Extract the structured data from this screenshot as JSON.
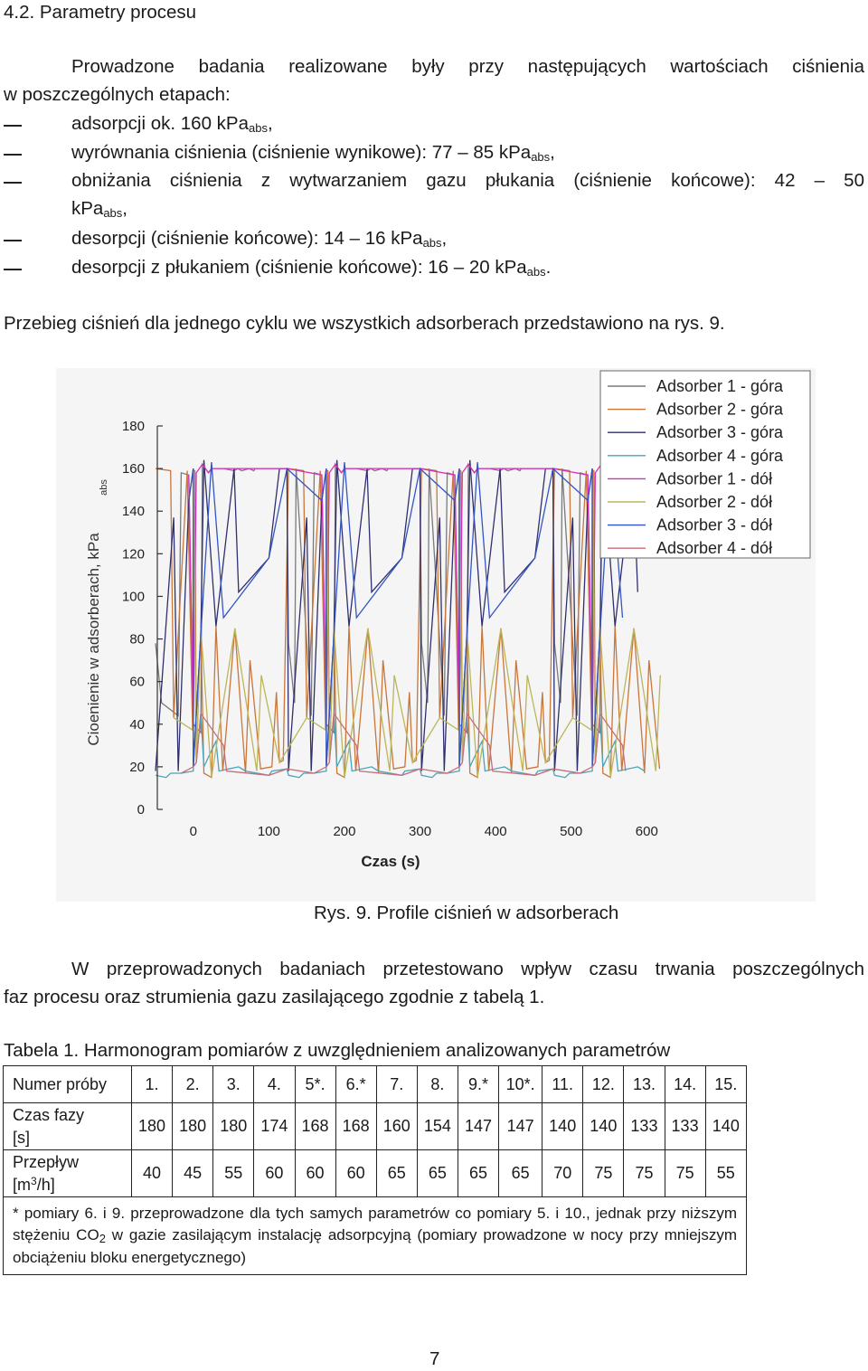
{
  "section": {
    "heading": "4.2. Parametry procesu"
  },
  "intro": {
    "line1": "Prowadzone badania realizowane były przy następujących wartościach ciśnienia",
    "line2": "w poszczególnych etapach:"
  },
  "bullets": [
    {
      "text": "adsorpcji ok. 160 kPa",
      "sub": "abs",
      "after": ","
    },
    {
      "text": "wyrównania ciśnienia (ciśnienie wynikowe): 77 – 85 kPa",
      "sub": "abs",
      "after": ","
    },
    {
      "line_a": "obniżania ciśnienia z wytwarzaniem gazu płukania (ciśnienie końcowe): 42 – 50",
      "line_b": "kPa",
      "sub": "abs",
      "after": ","
    },
    {
      "text": "desorpcji (ciśnienie końcowe): 14 – 16 kPa",
      "sub": "abs",
      "after": ","
    },
    {
      "text": "desorpcji z płukaniem (ciśnienie końcowe): 16 – 20 kPa",
      "sub": "abs",
      "after": "."
    }
  ],
  "ref_text": "Przebieg ciśnień dla jednego cyklu we wszystkich adsorberach przedstawiono na rys. 9.",
  "chart_data": {
    "type": "line",
    "title": "",
    "xlabel": "Czas (s)",
    "ylabel": "Cioenienie w adsorberach, kPa",
    "ylabel_sub": "abs",
    "xlim": [
      -50,
      620
    ],
    "ylim": [
      0,
      180
    ],
    "x_ticks": [
      0,
      100,
      200,
      300,
      400,
      500,
      600
    ],
    "y_ticks": [
      0,
      20,
      40,
      60,
      80,
      100,
      120,
      140,
      160,
      180
    ],
    "legend_position": "top-right",
    "series": [
      {
        "name": "Adsorber 1 - góra",
        "color": "#7a7a7a",
        "points": [
          [
            -50,
            78
          ],
          [
            -42,
            50
          ],
          [
            -20,
            44
          ],
          [
            0,
            40
          ],
          [
            10,
            36
          ],
          [
            12,
            162
          ],
          [
            20,
            158
          ],
          [
            40,
            160
          ],
          [
            80,
            159
          ],
          [
            160,
            158
          ],
          [
            170,
            157
          ],
          [
            200,
            160
          ],
          [
            230,
            159
          ],
          [
            235,
            160
          ],
          [
            240,
            159
          ],
          [
            250,
            160
          ],
          [
            258,
            160
          ],
          [
            275,
            160
          ],
          [
            290,
            160
          ],
          [
            300,
            160
          ],
          [
            312,
            160
          ]
        ]
      },
      {
        "name": "Adsorber 2 - góra",
        "color": "#c8763a",
        "points": [
          [
            -50,
            160
          ],
          [
            -30,
            159
          ],
          [
            -8,
            159
          ],
          [
            0,
            159
          ],
          [
            2,
            159
          ],
          [
            10,
            85
          ],
          [
            30,
            86
          ],
          [
            55,
            85
          ],
          [
            75,
            70
          ],
          [
            110,
            55
          ],
          [
            150,
            43
          ],
          [
            175,
            37
          ],
          [
            180,
            22
          ],
          [
            190,
            17
          ],
          [
            200,
            15
          ],
          [
            215,
            18
          ],
          [
            245,
            17
          ],
          [
            265,
            19
          ],
          [
            280,
            20
          ],
          [
            290,
            22
          ],
          [
            295,
            23
          ]
        ]
      },
      {
        "name": "Adsorber 3 - góra",
        "color": "#2f2f6e",
        "points": [
          [
            -50,
            18
          ],
          [
            -20,
            18
          ],
          [
            0,
            20
          ],
          [
            10,
            82
          ],
          [
            30,
            86
          ],
          [
            60,
            102
          ],
          [
            100,
            118
          ],
          [
            150,
            137
          ],
          [
            170,
            145
          ],
          [
            176,
            160
          ],
          [
            190,
            164
          ],
          [
            230,
            160
          ],
          [
            290,
            160
          ],
          [
            300,
            160
          ]
        ]
      },
      {
        "name": "Adsorber 4 - góra",
        "color": "#4aa3b8",
        "points": [
          [
            -50,
            16
          ],
          [
            -30,
            17
          ],
          [
            0,
            20
          ],
          [
            10,
            45
          ],
          [
            30,
            32
          ],
          [
            60,
            20
          ],
          [
            100,
            16
          ],
          [
            140,
            15
          ],
          [
            160,
            17
          ],
          [
            176,
            18
          ],
          [
            180,
            22
          ],
          [
            190,
            20
          ],
          [
            210,
            18
          ],
          [
            245,
            18
          ],
          [
            280,
            18
          ],
          [
            300,
            19
          ]
        ]
      },
      {
        "name": "Adsorber 1 - dół",
        "color": "#d42fbf",
        "points": [
          [
            0,
            40
          ],
          [
            12,
            162
          ],
          [
            20,
            158
          ],
          [
            60,
            160
          ],
          [
            170,
            157
          ],
          [
            180,
            158
          ],
          [
            200,
            160
          ],
          [
            240,
            160
          ],
          [
            290,
            160
          ],
          [
            300,
            160
          ]
        ]
      },
      {
        "name": "Adsorber 2 - dół",
        "color": "#bcb65a",
        "points": [
          [
            0,
            159
          ],
          [
            10,
            85
          ],
          [
            55,
            85
          ],
          [
            90,
            63
          ],
          [
            150,
            43
          ],
          [
            176,
            37
          ],
          [
            180,
            22
          ],
          [
            200,
            15
          ],
          [
            260,
            18
          ],
          [
            290,
            22
          ]
        ]
      },
      {
        "name": "Adsorber 3 - dół",
        "color": "#3355c4",
        "points": [
          [
            0,
            20
          ],
          [
            10,
            82
          ],
          [
            40,
            90
          ],
          [
            100,
            118
          ],
          [
            170,
            145
          ],
          [
            176,
            160
          ],
          [
            200,
            163
          ],
          [
            300,
            160
          ]
        ]
      },
      {
        "name": "Adsorber 4 - dół",
        "color": "#c86d7a",
        "points": [
          [
            0,
            20
          ],
          [
            10,
            45
          ],
          [
            40,
            30
          ],
          [
            100,
            16
          ],
          [
            160,
            17
          ],
          [
            180,
            22
          ],
          [
            220,
            18
          ],
          [
            300,
            19
          ]
        ]
      }
    ]
  },
  "figure_caption": "Rys. 9. Profile ciśnień w adsorberach",
  "para2": {
    "line1": "W przeprowadzonych badaniach przetestowano wpływ czasu trwania poszczególnych",
    "line2": "faz procesu oraz strumienia gazu zasilającego zgodnie z tabelą 1."
  },
  "table": {
    "caption": "Tabela 1. Harmonogram pomiarów z uwzględnieniem analizowanych parametrów",
    "rows": [
      {
        "label": "Numer próby",
        "values": [
          "1.",
          "2.",
          "3.",
          "4.",
          "5*.",
          "6.*",
          "7.",
          "8.",
          "9.*",
          "10*.",
          "11.",
          "12.",
          "13.",
          "14.",
          "15."
        ]
      },
      {
        "label_a": "Czas fazy",
        "label_b": "[s]",
        "values": [
          "180",
          "180",
          "180",
          "174",
          "168",
          "168",
          "160",
          "154",
          "147",
          "147",
          "140",
          "140",
          "133",
          "133",
          "140"
        ]
      },
      {
        "label_a": "Przepływ",
        "label_b_pre": "[m",
        "label_b_sup": "3",
        "label_b_post": "/h]",
        "values": [
          "40",
          "45",
          "55",
          "60",
          "60",
          "60",
          "65",
          "65",
          "65",
          "65",
          "70",
          "75",
          "75",
          "75",
          "55"
        ]
      }
    ],
    "note_pre": "* pomiary 6. i 9. przeprowadzone dla tych samych parametrów co pomiary 5. i 10., jednak przy niższym stężeniu CO",
    "note_sub": "2",
    "note_post": " w gazie zasilającym instalację adsorpcyjną (pomiary prowadzone w nocy przy mniejszym obciążeniu bloku energetycznego)"
  },
  "page_number": "7"
}
